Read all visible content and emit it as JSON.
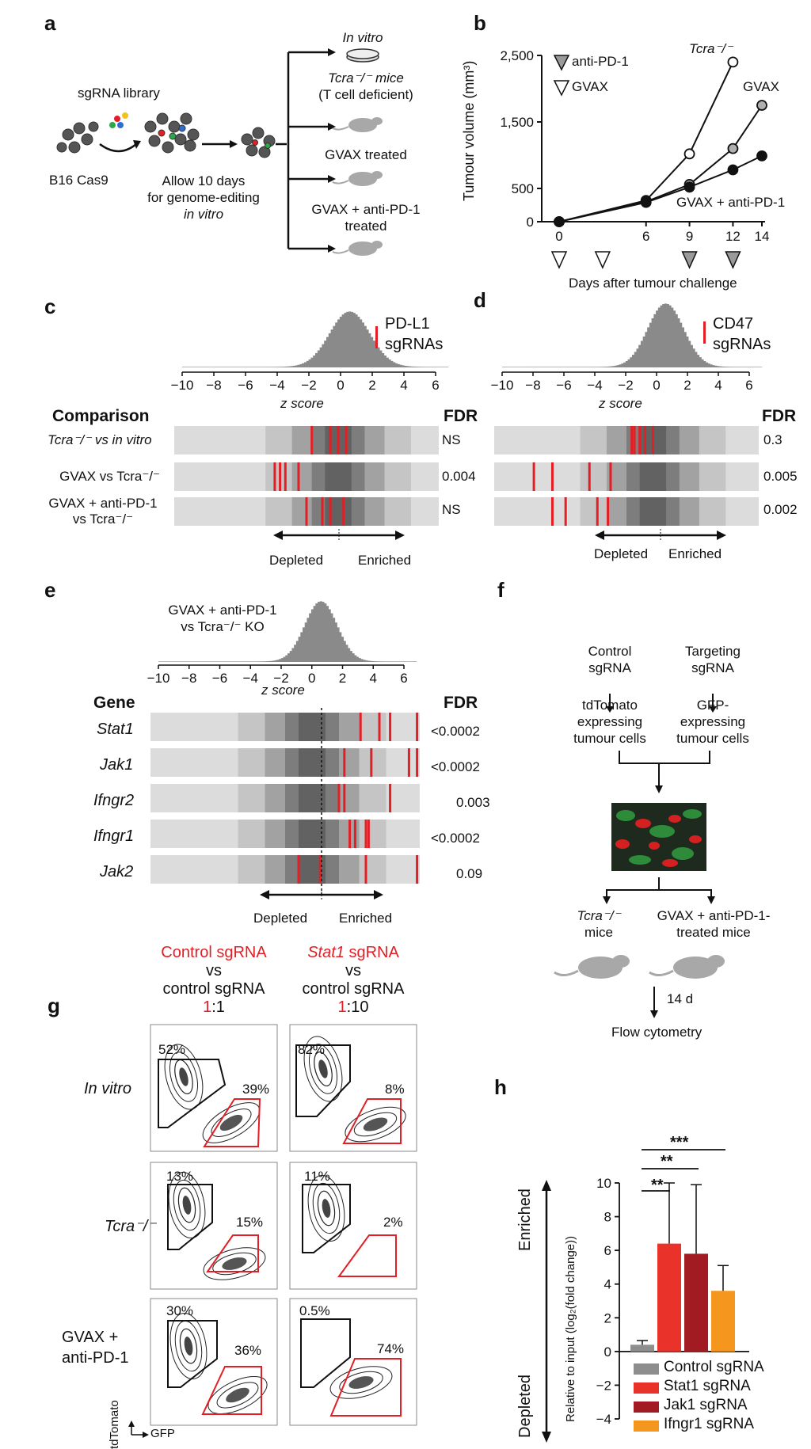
{
  "panels": {
    "a": {
      "label": "a",
      "sgrna_library": "sgRNA library",
      "b16_cas9": "B16 Cas9",
      "allow_line1": "Allow 10 days",
      "allow_line2": "for genome-editing",
      "allow_line3": "in vitro",
      "branches": {
        "in_vitro": "In vitro",
        "tcra_line1": "Tcra⁻/⁻ mice",
        "tcra_line2": "(T cell deficient)",
        "gvax": "GVAX treated",
        "gvax_pd1_line1": "GVAX + anti-PD-1",
        "gvax_pd1_line2": "treated"
      }
    },
    "b": {
      "label": "b",
      "ylabel": "Tumour volume (mm³)",
      "xlabel": "Days after tumour challenge",
      "legend_pd1": "anti-PD-1",
      "legend_gvax": "GVAX",
      "label_tcra": "Tcra⁻/⁻",
      "label_gvax": "GVAX",
      "label_gvax_pd1": "GVAX + anti-PD-1"
    },
    "c": {
      "label": "c",
      "legend_line1": "PD-L1",
      "legend_line2": "sgRNAs",
      "zscore": "z score",
      "comparison_header": "Comparison",
      "fdr_header": "FDR",
      "row1": "Tcra⁻/⁻ vs in vitro",
      "row2": "GVAX vs Tcra⁻/⁻",
      "row3_line1": "GVAX + anti-PD-1",
      "row3_line2": "vs Tcra⁻/⁻",
      "fdr1": "NS",
      "fdr2": "0.004",
      "fdr3": "NS",
      "depleted": "Depleted",
      "enriched": "Enriched"
    },
    "d": {
      "label": "d",
      "legend_line1": "CD47",
      "legend_line2": "sgRNAs",
      "zscore": "z score",
      "fdr_header": "FDR",
      "fdr1": "0.3",
      "fdr2": "0.005",
      "fdr3": "0.002",
      "depleted": "Depleted",
      "enriched": "Enriched"
    },
    "e": {
      "label": "e",
      "title_line1": "GVAX + anti-PD-1",
      "title_line2": "vs Tcra⁻/⁻ KO",
      "zscore": "z score",
      "gene_header": "Gene",
      "fdr_header": "FDR",
      "genes": [
        "Stat1",
        "Jak1",
        "Ifngr2",
        "Ifngr1",
        "Jak2"
      ],
      "fdrs": [
        "<0.0002",
        "<0.0002",
        "0.003",
        "<0.0002",
        "0.09"
      ],
      "depleted": "Depleted",
      "enriched": "Enriched"
    },
    "f": {
      "label": "f",
      "control_line1": "Control",
      "control_line2": "sgRNA",
      "targeting_line1": "Targeting",
      "targeting_line2": "sgRNA",
      "tdtomato_line1": "tdTomato",
      "tdtomato_line2": "expressing",
      "tdtomato_line3": "tumour cells",
      "gfp_line1": "GFP-",
      "gfp_line2": "expressing",
      "gfp_line3": "tumour cells",
      "tcra_line1": "Tcra⁻/⁻",
      "tcra_line2": "mice",
      "treated_line1": "GVAX + anti-PD-1-",
      "treated_line2": "treated mice",
      "days": "14 d",
      "flow": "Flow cytometry"
    },
    "g": {
      "label": "g",
      "col1_line1": "Control sgRNA",
      "col1_line2": "vs",
      "col1_line3": "control sgRNA",
      "col1_ratio_red": "1",
      "col1_ratio_rest": ":1",
      "col2_line1_italic": "Stat1",
      "col2_line1_rest": " sgRNA",
      "col2_line2": "vs",
      "col2_line3": "control sgRNA",
      "col2_ratio_red": "1",
      "col2_ratio_rest": ":10",
      "rows": [
        "In vitro",
        "Tcra⁻/⁻",
        "GVAX +",
        "anti-PD-1"
      ],
      "percents": {
        "r1c1_black": "52%",
        "r1c1_red": "39%",
        "r1c2_black": "82%",
        "r1c2_red": "8%",
        "r2c1_black": "13%",
        "r2c1_red": "15%",
        "r2c2_black": "11%",
        "r2c2_red": "2%",
        "r3c1_black": "30%",
        "r3c1_red": "36%",
        "r3c2_black": "0.5%",
        "r3c2_red": "74%"
      },
      "axis_y": "tdTomato",
      "axis_x": "GFP"
    },
    "h": {
      "label": "h",
      "enriched": "Enriched",
      "depleted": "Depleted",
      "ylabel": "Relative to input (log₂(fold change))",
      "sig1": "**",
      "sig2": "**",
      "sig3": "***",
      "legend": [
        "Control sgRNA",
        "Stat1 sgRNA",
        "Jak1 sgRNA",
        "Ifngr1 sgRNA"
      ]
    }
  },
  "chart_data": [
    {
      "type": "line",
      "x": [
        0,
        6,
        9,
        12,
        14
      ],
      "xlabel": "Days after tumour challenge",
      "ylabel": "Tumour volume (mm³)",
      "ylim": [
        0,
        2500
      ],
      "yticks": [
        0,
        500,
        1500,
        2500
      ],
      "ytick_labels": [
        "0",
        "500",
        "1,500",
        "2,500"
      ],
      "xticks": [
        0,
        6,
        9,
        12,
        14
      ],
      "series": [
        {
          "name": "Tcra⁻/⁻",
          "x": [
            0,
            6,
            9,
            12
          ],
          "values": [
            0,
            320,
            1020,
            2400
          ],
          "marker": "open",
          "fill": "#ffffff"
        },
        {
          "name": "GVAX",
          "x": [
            0,
            6,
            9,
            12,
            14
          ],
          "values": [
            0,
            300,
            560,
            1100,
            1750
          ],
          "marker": "grey",
          "fill": "#b0b0b0"
        },
        {
          "name": "GVAX + anti-PD-1",
          "x": [
            0,
            6,
            9,
            12,
            14
          ],
          "values": [
            0,
            290,
            520,
            780,
            990
          ],
          "marker": "filled",
          "fill": "#111111"
        }
      ],
      "gvax_days": [
        0,
        3
      ],
      "anti_pd1_days": [
        9,
        12
      ]
    },
    {
      "type": "bar",
      "categories": [
        "Control sgRNA",
        "Stat1 sgRNA",
        "Jak1 sgRNA",
        "Ifngr1 sgRNA"
      ],
      "values": [
        0.4,
        6.4,
        5.8,
        3.6
      ],
      "errors": [
        0.25,
        3.6,
        4.1,
        1.5
      ],
      "colors": [
        "#8e8e8e",
        "#e8322a",
        "#a31b22",
        "#f5961e"
      ],
      "ylim": [
        -4,
        10
      ],
      "yticks": [
        -4,
        -2,
        0,
        2,
        4,
        6,
        8,
        10
      ],
      "ylabel": "Relative to input (log₂(fold change))"
    }
  ],
  "colors": {
    "red": "#e31e24",
    "grey_hist": "#8a8a8a",
    "tomato_red": "#d42020"
  }
}
